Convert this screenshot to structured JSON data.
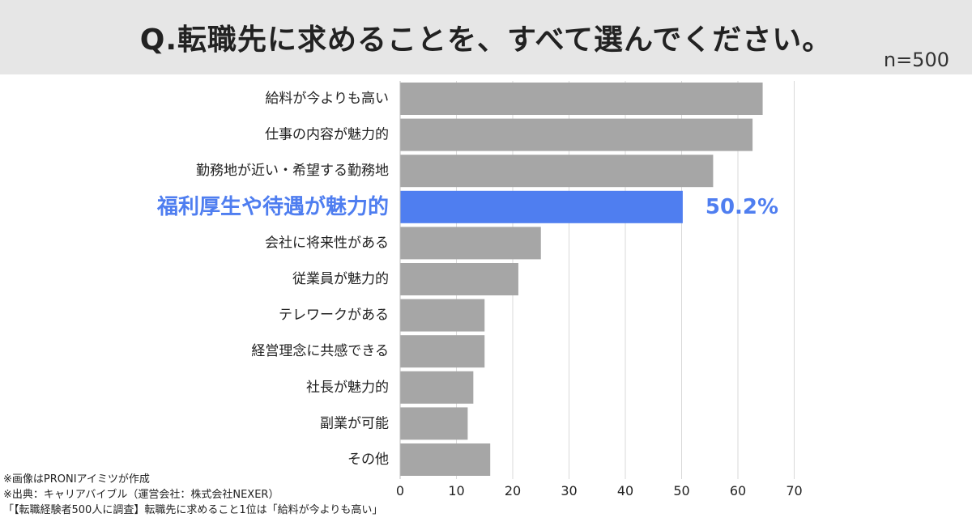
{
  "header": {
    "title": "Q.転職先に求めることを、すべて選んでください。",
    "sample": "n=500"
  },
  "chart_data": {
    "type": "bar",
    "orientation": "horizontal",
    "title": "Q.転職先に求めることを、すべて選んでください。",
    "xlabel": "",
    "ylabel": "",
    "categories": [
      "給料が今よりも高い",
      "仕事の内容が魅力的",
      "勤務地が近い・希望する勤務地",
      "福利厚生や待遇が魅力的",
      "会社に将来性がある",
      "従業員が魅力的",
      "テレワークがある",
      "経営理念に共感できる",
      "社長が魅力的",
      "副業が可能",
      "その他"
    ],
    "values": [
      64.4,
      62.6,
      55.6,
      50.2,
      25.0,
      21.0,
      15.0,
      15.0,
      13.0,
      12.0,
      16.0
    ],
    "xlim": [
      0,
      70
    ],
    "xticks": [
      "0",
      "10",
      "20",
      "30",
      "40",
      "50",
      "60",
      "70"
    ],
    "grid": true,
    "legend": "none",
    "highlight": {
      "index": 3,
      "label": "50.2%"
    },
    "colors": {
      "bar": "#a6a6a6",
      "highlight": "#4f7ef0",
      "grid": "#d9d9d9"
    }
  },
  "notes": [
    "※画像はPRONIアイミツが作成",
    "※出典：キャリアバイブル（運営会社：株式会社NEXER）",
    "「【転職経験者500人に調査】転職先に求めること1位は「給料が今よりも高い」"
  ]
}
